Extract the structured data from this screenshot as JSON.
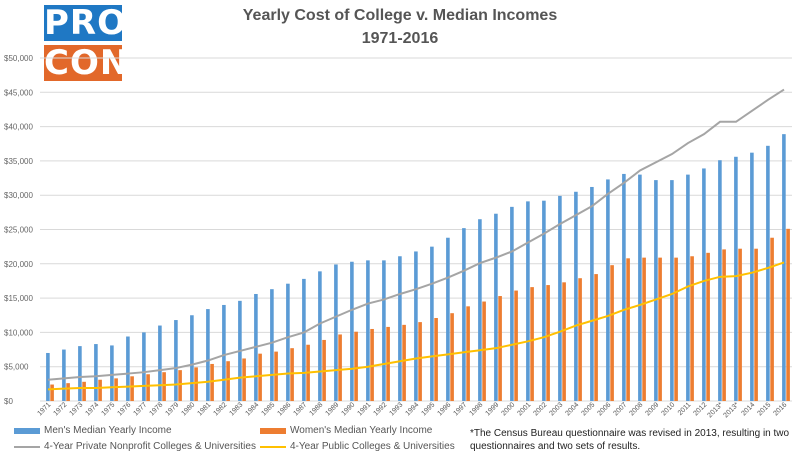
{
  "logo": {
    "top": "PRO",
    "bottom": "CON"
  },
  "chart_data": {
    "type": "bar",
    "title": "Yearly Cost of College v. Median Incomes",
    "subtitle": "1971-2016",
    "categories": [
      "1971",
      "1972",
      "1973",
      "1974",
      "1975",
      "1976",
      "1977",
      "1978",
      "1979",
      "1980",
      "1981",
      "1982",
      "1983",
      "1984",
      "1985",
      "1986",
      "1987",
      "1988",
      "1989",
      "1990",
      "1991",
      "1992",
      "1993",
      "1994",
      "1995",
      "1996",
      "1997",
      "1998",
      "1999",
      "2000",
      "2001",
      "2002",
      "2003",
      "2004",
      "2005",
      "2006",
      "2007",
      "2008",
      "2009",
      "2010",
      "2011",
      "2012",
      "2013*",
      "2013*",
      "2014",
      "2015",
      "2016"
    ],
    "yticks": [
      "$0",
      "$5,000",
      "$10,000",
      "$15,000",
      "$20,000",
      "$25,000",
      "$30,000",
      "$35,000",
      "$40,000",
      "$45,000",
      "$50,000"
    ],
    "ylim": [
      0,
      50000
    ],
    "grid": true,
    "series": [
      {
        "name": "Men's Median Yearly Income",
        "kind": "bar",
        "color": "#5b9bd5",
        "values": [
          7000,
          7500,
          8000,
          8300,
          8100,
          9400,
          10000,
          11000,
          11800,
          12500,
          13400,
          14000,
          14600,
          15600,
          16300,
          17100,
          17800,
          18900,
          19900,
          20300,
          20500,
          20500,
          21100,
          21800,
          22500,
          23800,
          25200,
          26500,
          27300,
          28300,
          29100,
          29200,
          29900,
          30500,
          31200,
          32300,
          33100,
          33000,
          32200,
          32200,
          33000,
          33900,
          35100,
          35600,
          36200,
          37200,
          38900
        ]
      },
      {
        "name": "Women's Median Yearly Income",
        "kind": "bar",
        "color": "#ed7d31",
        "values": [
          2400,
          2600,
          2800,
          3100,
          3300,
          3600,
          3900,
          4200,
          4500,
          4900,
          5400,
          5800,
          6200,
          6900,
          7200,
          7700,
          8200,
          8900,
          9700,
          10100,
          10500,
          10800,
          11100,
          11500,
          12100,
          12800,
          13800,
          14500,
          15300,
          16100,
          16600,
          16900,
          17300,
          17900,
          18500,
          19800,
          20800,
          20900,
          20900,
          20900,
          21100,
          21600,
          22100,
          22200,
          22200,
          23800,
          25100
        ]
      },
      {
        "name": "4-Year Private Nonprofit Colleges & Universities",
        "kind": "line",
        "color": "#a5a5a5",
        "values": [
          3100,
          3300,
          3500,
          3600,
          3800,
          4000,
          4200,
          4500,
          4800,
          5300,
          5900,
          6700,
          7300,
          7900,
          8500,
          9300,
          10000,
          11300,
          12300,
          13300,
          14200,
          14800,
          15600,
          16300,
          17100,
          18000,
          19000,
          20100,
          20900,
          21800,
          23100,
          24400,
          25800,
          27100,
          28400,
          30200,
          31800,
          33600,
          34800,
          36000,
          37600,
          38900,
          40700,
          40700,
          42300,
          43900,
          45400
        ]
      },
      {
        "name": "4-Year Public  Colleges &  Universities",
        "kind": "line",
        "color": "#ffc000",
        "values": [
          1700,
          1800,
          1900,
          1900,
          2000,
          2100,
          2200,
          2300,
          2400,
          2600,
          2800,
          3100,
          3400,
          3600,
          3800,
          4000,
          4100,
          4300,
          4500,
          4700,
          5000,
          5400,
          5800,
          6200,
          6500,
          6800,
          7100,
          7400,
          7700,
          8200,
          8700,
          9300,
          10100,
          11000,
          11700,
          12400,
          13300,
          14000,
          14800,
          15600,
          16700,
          17500,
          18100,
          18200,
          18700,
          19400,
          20200
        ]
      }
    ]
  },
  "footnote": "*The Census Bureau questionnaire was revised in 2013, resulting in two questionnaires and two sets of results."
}
